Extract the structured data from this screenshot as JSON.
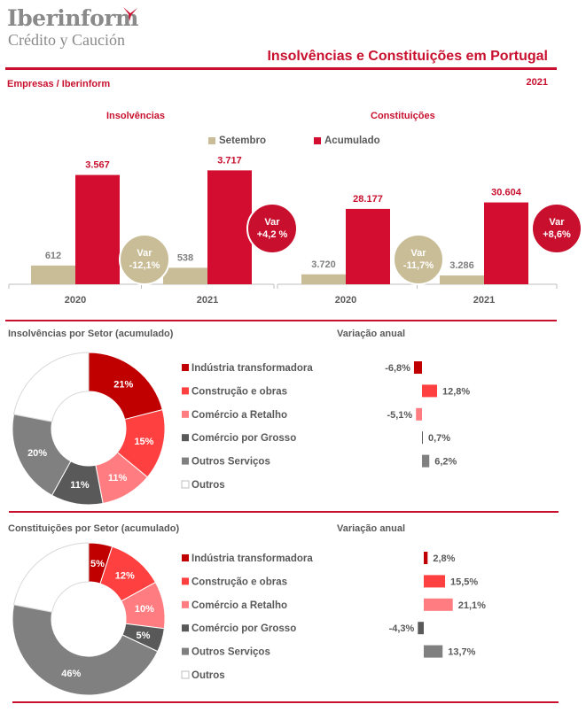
{
  "header": {
    "logo_main": "Iberinform",
    "logo_sub": "Crédito y Caución",
    "title": "Insolvências e Constituições em  Portugal",
    "subtitle": "Empresas / Iberinform",
    "year": "2021"
  },
  "colors": {
    "red": "#c8102e",
    "tan": "#c9bd98",
    "bar_red": "#d30d30"
  },
  "legend": {
    "setembro": "Setembro",
    "acumulado": "Acumulado"
  },
  "chart_data": [
    {
      "type": "bar",
      "title": "Insolvências",
      "categories": [
        "2020",
        "2021"
      ],
      "series": [
        {
          "name": "Setembro",
          "values": [
            612,
            538
          ],
          "labels": [
            "612",
            "538"
          ]
        },
        {
          "name": "Acumulado",
          "values": [
            3567,
            3717
          ],
          "labels": [
            "3.567",
            "3.717"
          ]
        }
      ],
      "var_setembro": {
        "label": "Var",
        "value": "-12,1%"
      },
      "var_acumulado": {
        "label": "Var",
        "value": "+4,2 %"
      }
    },
    {
      "type": "bar",
      "title": "Constituições",
      "categories": [
        "2020",
        "2021"
      ],
      "series": [
        {
          "name": "Setembro",
          "values": [
            3720,
            3286
          ],
          "labels": [
            "3.720",
            "3.286"
          ]
        },
        {
          "name": "Acumulado",
          "values": [
            28177,
            30604
          ],
          "labels": [
            "28.177",
            "30.604"
          ]
        }
      ],
      "var_setembro": {
        "label": "Var",
        "value": "-11,7%"
      },
      "var_acumulado": {
        "label": "Var",
        "value": "+8,6%"
      }
    },
    {
      "type": "pie",
      "title": "Insolvências por Setor (acumulado)",
      "var_title": "Variação anual",
      "categories": [
        "Indústria transformadora",
        "Construção e obras",
        "Comércio a Retalho",
        "Comércio por Grosso",
        "Outros Serviços",
        "Outros"
      ],
      "colors": [
        "#c00000",
        "#ff4040",
        "#ff7c80",
        "#595959",
        "#808080",
        "#ffffff"
      ],
      "values": [
        21,
        15,
        11,
        11,
        20,
        22
      ],
      "labels": [
        "21%",
        "15%",
        "11%",
        "11%",
        "20%",
        ""
      ],
      "variation": [
        -6.8,
        12.8,
        -5.1,
        0.7,
        6.2,
        null
      ],
      "variation_labels": [
        "-6,8%",
        "12,8%",
        "-5,1%",
        "0,7%",
        "6,2%",
        ""
      ]
    },
    {
      "type": "pie",
      "title": "Constituições por Setor (acumulado)",
      "var_title": "Variação anual",
      "categories": [
        "Indústria transformadora",
        "Construção e obras",
        "Comércio a Retalho",
        "Comércio por Grosso",
        "Outros Serviços",
        "Outros"
      ],
      "colors": [
        "#c00000",
        "#ff4040",
        "#ff7c80",
        "#595959",
        "#808080",
        "#ffffff"
      ],
      "values": [
        5,
        12,
        10,
        5,
        46,
        22
      ],
      "labels": [
        "5%",
        "12%",
        "10%",
        "5%",
        "46%",
        ""
      ],
      "variation": [
        2.8,
        15.5,
        21.1,
        -4.3,
        13.7,
        null
      ],
      "variation_labels": [
        "2,8%",
        "15,5%",
        "21,1%",
        "-4,3%",
        "13,7%",
        ""
      ]
    }
  ]
}
